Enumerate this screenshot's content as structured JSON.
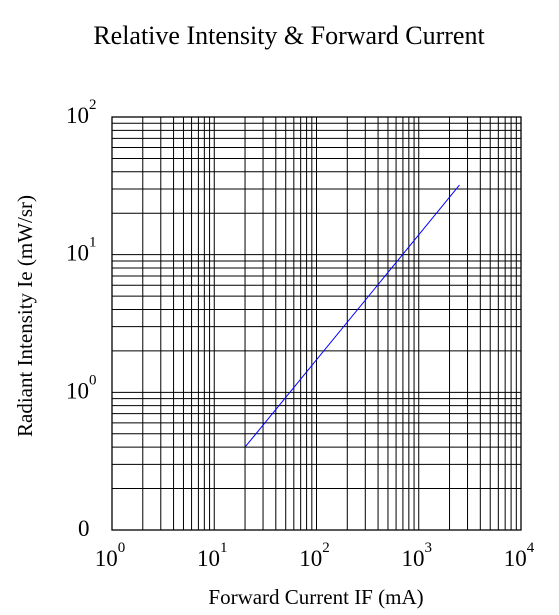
{
  "chart_data": {
    "type": "line",
    "title": "Relative Intensity & Forward Current",
    "xlabel": "Forward Current IF (mA)",
    "ylabel": "Radiant Intensity Ie (mW/sr)",
    "x_scale": "log",
    "y_scale": "log",
    "xlim": [
      1,
      10000
    ],
    "ylim": [
      0.1,
      100
    ],
    "grid": true,
    "x_ticks": [
      {
        "base": "10",
        "exp": "0"
      },
      {
        "base": "10",
        "exp": "1"
      },
      {
        "base": "10",
        "exp": "2"
      },
      {
        "base": "10",
        "exp": "3"
      },
      {
        "base": "10",
        "exp": "4"
      }
    ],
    "y_ticks": [
      {
        "base": "0",
        "exp": ""
      },
      {
        "base": "10",
        "exp": "0"
      },
      {
        "base": "10",
        "exp": "1"
      },
      {
        "base": "10",
        "exp": "2"
      }
    ],
    "series": [
      {
        "color": "#0000ff",
        "x": [
          20,
          2500
        ],
        "y": [
          0.4,
          32
        ]
      }
    ]
  }
}
